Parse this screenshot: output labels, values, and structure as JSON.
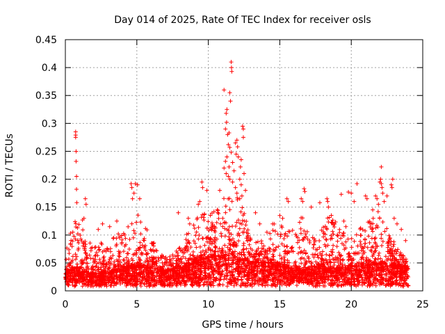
{
  "chart_data": {
    "type": "scatter",
    "title": "Day 014 of 2025, Rate Of TEC Index for receiver osls",
    "xlabel": "GPS time / hours",
    "ylabel": "ROTI / TECUs",
    "xlim": [
      0,
      25
    ],
    "ylim": [
      0,
      0.45
    ],
    "x_ticks": [
      0,
      5,
      10,
      15,
      20,
      25
    ],
    "x_tick_labels": [
      "0",
      "5",
      "10",
      "15",
      "20",
      "25"
    ],
    "y_ticks": [
      0,
      0.05,
      0.1,
      0.15,
      0.2,
      0.25,
      0.3,
      0.35,
      0.4,
      0.45
    ],
    "y_tick_labels": [
      "0",
      "0.05",
      "0.1",
      "0.15",
      "0.2",
      "0.25",
      "0.3",
      "0.35",
      "0.4",
      "0.45"
    ],
    "grid": true,
    "marker": "plus",
    "series": [
      {
        "color": "#ff0000",
        "x_range": [
          0,
          24
        ],
        "baseline_upper": [
          [
            0.0,
            0.03
          ],
          [
            0.5,
            0.04
          ],
          [
            1.0,
            0.04
          ],
          [
            2.0,
            0.03
          ],
          [
            3.0,
            0.035
          ],
          [
            4.0,
            0.04
          ],
          [
            5.0,
            0.045
          ],
          [
            6.0,
            0.04
          ],
          [
            7.0,
            0.035
          ],
          [
            8.0,
            0.04
          ],
          [
            9.0,
            0.05
          ],
          [
            10.0,
            0.06
          ],
          [
            11.0,
            0.065
          ],
          [
            12.0,
            0.06
          ],
          [
            13.0,
            0.05
          ],
          [
            14.0,
            0.05
          ],
          [
            15.0,
            0.045
          ],
          [
            16.0,
            0.04
          ],
          [
            17.0,
            0.04
          ],
          [
            18.0,
            0.04
          ],
          [
            19.0,
            0.04
          ],
          [
            20.0,
            0.045
          ],
          [
            21.0,
            0.045
          ],
          [
            22.0,
            0.05
          ],
          [
            23.0,
            0.045
          ],
          [
            24.0,
            0.04
          ]
        ],
        "envelope": [
          [
            0.0,
            0.06
          ],
          [
            0.3,
            0.11
          ],
          [
            0.6,
            0.12
          ],
          [
            0.8,
            0.13
          ],
          [
            1.2,
            0.12
          ],
          [
            1.5,
            0.1
          ],
          [
            2.0,
            0.08
          ],
          [
            2.5,
            0.09
          ],
          [
            3.0,
            0.08
          ],
          [
            3.5,
            0.1
          ],
          [
            4.0,
            0.11
          ],
          [
            4.6,
            0.15
          ],
          [
            5.0,
            0.14
          ],
          [
            5.5,
            0.14
          ],
          [
            6.0,
            0.1
          ],
          [
            6.5,
            0.07
          ],
          [
            7.0,
            0.06
          ],
          [
            7.5,
            0.065
          ],
          [
            8.0,
            0.08
          ],
          [
            8.5,
            0.11
          ],
          [
            9.0,
            0.13
          ],
          [
            9.5,
            0.15
          ],
          [
            10.0,
            0.13
          ],
          [
            10.5,
            0.15
          ],
          [
            11.0,
            0.17
          ],
          [
            11.5,
            0.19
          ],
          [
            12.0,
            0.18
          ],
          [
            12.5,
            0.14
          ],
          [
            13.0,
            0.1
          ],
          [
            13.5,
            0.09
          ],
          [
            14.0,
            0.09
          ],
          [
            14.5,
            0.12
          ],
          [
            15.0,
            0.12
          ],
          [
            15.5,
            0.11
          ],
          [
            16.0,
            0.13
          ],
          [
            16.5,
            0.14
          ],
          [
            17.0,
            0.1
          ],
          [
            17.5,
            0.1
          ],
          [
            18.0,
            0.12
          ],
          [
            18.5,
            0.14
          ],
          [
            19.0,
            0.12
          ],
          [
            19.5,
            0.13
          ],
          [
            20.0,
            0.12
          ],
          [
            20.5,
            0.13
          ],
          [
            21.0,
            0.12
          ],
          [
            21.5,
            0.13
          ],
          [
            22.0,
            0.15
          ],
          [
            22.5,
            0.12
          ],
          [
            23.0,
            0.09
          ],
          [
            23.5,
            0.07
          ],
          [
            24.0,
            0.05
          ]
        ],
        "outliers": [
          [
            0.72,
            0.285
          ],
          [
            0.72,
            0.279
          ],
          [
            0.72,
            0.275
          ],
          [
            0.75,
            0.25
          ],
          [
            0.75,
            0.232
          ],
          [
            0.78,
            0.205
          ],
          [
            0.78,
            0.182
          ],
          [
            0.8,
            0.158
          ],
          [
            1.4,
            0.165
          ],
          [
            1.45,
            0.155
          ],
          [
            1.3,
            0.13
          ],
          [
            1.2,
            0.127
          ],
          [
            4.6,
            0.192
          ],
          [
            4.65,
            0.185
          ],
          [
            4.9,
            0.192
          ],
          [
            5.05,
            0.19
          ],
          [
            4.8,
            0.175
          ],
          [
            5.2,
            0.165
          ],
          [
            4.7,
            0.165
          ],
          [
            9.55,
            0.195
          ],
          [
            9.6,
            0.185
          ],
          [
            9.9,
            0.18
          ],
          [
            9.4,
            0.16
          ],
          [
            9.3,
            0.155
          ],
          [
            10.8,
            0.18
          ],
          [
            11.1,
            0.36
          ],
          [
            11.5,
            0.355
          ],
          [
            11.55,
            0.34
          ],
          [
            11.6,
            0.41
          ],
          [
            11.62,
            0.4
          ],
          [
            11.64,
            0.393
          ],
          [
            11.3,
            0.325
          ],
          [
            11.25,
            0.318
          ],
          [
            11.28,
            0.302
          ],
          [
            11.2,
            0.29
          ],
          [
            11.35,
            0.28
          ],
          [
            11.45,
            0.283
          ],
          [
            11.4,
            0.262
          ],
          [
            11.5,
            0.257
          ],
          [
            11.6,
            0.248
          ],
          [
            11.3,
            0.24
          ],
          [
            11.2,
            0.232
          ],
          [
            11.7,
            0.23
          ],
          [
            11.45,
            0.222
          ],
          [
            11.1,
            0.22
          ],
          [
            11.8,
            0.215
          ],
          [
            11.25,
            0.21
          ],
          [
            11.9,
            0.265
          ],
          [
            12.0,
            0.27
          ],
          [
            12.05,
            0.258
          ],
          [
            11.95,
            0.245
          ],
          [
            12.1,
            0.24
          ],
          [
            12.3,
            0.235
          ],
          [
            12.25,
            0.222
          ],
          [
            12.4,
            0.295
          ],
          [
            12.45,
            0.29
          ],
          [
            12.45,
            0.275
          ],
          [
            12.5,
            0.21
          ],
          [
            12.2,
            0.2
          ],
          [
            12.3,
            0.19
          ],
          [
            12.6,
            0.18
          ],
          [
            12.35,
            0.17
          ],
          [
            12.2,
            0.165
          ],
          [
            12.0,
            0.175
          ],
          [
            11.9,
            0.185
          ],
          [
            11.7,
            0.195
          ],
          [
            11.5,
            0.2
          ],
          [
            11.4,
            0.205
          ],
          [
            16.5,
            0.165
          ],
          [
            16.6,
            0.16
          ],
          [
            16.7,
            0.183
          ],
          [
            16.75,
            0.178
          ],
          [
            15.5,
            0.165
          ],
          [
            15.6,
            0.16
          ],
          [
            17.2,
            0.15
          ],
          [
            17.8,
            0.158
          ],
          [
            18.3,
            0.165
          ],
          [
            18.35,
            0.16
          ],
          [
            18.4,
            0.15
          ],
          [
            19.3,
            0.173
          ],
          [
            19.8,
            0.177
          ],
          [
            20.0,
            0.175
          ],
          [
            20.2,
            0.16
          ],
          [
            20.4,
            0.192
          ],
          [
            21.0,
            0.17
          ],
          [
            21.1,
            0.165
          ],
          [
            21.5,
            0.145
          ],
          [
            21.7,
            0.17
          ],
          [
            21.8,
            0.165
          ],
          [
            21.9,
            0.155
          ],
          [
            22.0,
            0.195
          ],
          [
            22.05,
            0.2
          ],
          [
            22.1,
            0.192
          ],
          [
            22.1,
            0.222
          ],
          [
            22.15,
            0.185
          ],
          [
            22.2,
            0.175
          ],
          [
            22.3,
            0.16
          ],
          [
            22.5,
            0.17
          ],
          [
            22.8,
            0.19
          ],
          [
            22.85,
            0.185
          ],
          [
            22.9,
            0.2
          ],
          [
            23.0,
            0.13
          ],
          [
            23.2,
            0.12
          ],
          [
            23.5,
            0.11
          ],
          [
            23.8,
            0.09
          ],
          [
            8.6,
            0.13
          ],
          [
            8.7,
            0.12
          ],
          [
            7.9,
            0.14
          ],
          [
            2.3,
            0.11
          ],
          [
            2.6,
            0.12
          ],
          [
            3.1,
            0.115
          ],
          [
            3.6,
            0.125
          ],
          [
            13.3,
            0.14
          ],
          [
            13.6,
            0.12
          ],
          [
            14.1,
            0.105
          ],
          [
            14.5,
            0.12
          ],
          [
            15.0,
            0.135
          ],
          [
            15.2,
            0.13
          ]
        ]
      }
    ]
  }
}
